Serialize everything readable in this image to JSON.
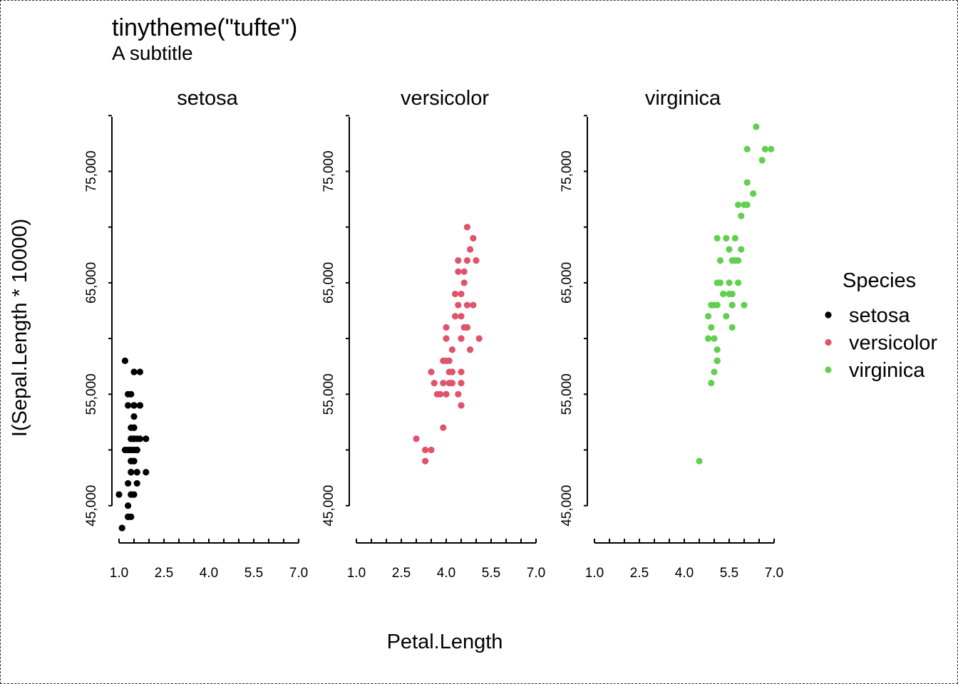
{
  "chart_data": {
    "type": "scatter",
    "title": "tinytheme(\"tufte\")",
    "subtitle": "A subtitle",
    "xlabel": "Petal.Length",
    "ylabel": "I(Sepal.Length * 10000)",
    "xlim": [
      1.0,
      7.0
    ],
    "ylim": [
      43000,
      80000
    ],
    "x_ticks": [
      1.0,
      2.5,
      4.0,
      5.5,
      7.0
    ],
    "x_tick_labels": [
      "1.0",
      "2.5",
      "4.0",
      "5.5",
      "7.0"
    ],
    "y_ticks": [
      45000,
      50000,
      55000,
      60000,
      65000,
      70000,
      75000,
      80000
    ],
    "y_tick_labels": [
      "45,000",
      "55,000",
      "65,000",
      "75,000"
    ],
    "y_labeled_ticks": [
      45000,
      55000,
      65000,
      75000
    ],
    "legend": {
      "title": "Species",
      "placement": "right",
      "entries": [
        {
          "label": "setosa",
          "color": "#000000"
        },
        {
          "label": "versicolor",
          "color": "#DF536B"
        },
        {
          "label": "virginica",
          "color": "#61D04F"
        }
      ]
    },
    "panels": [
      {
        "name": "setosa",
        "color": "#000000",
        "points": [
          [
            1.4,
            51000
          ],
          [
            1.4,
            49000
          ],
          [
            1.3,
            47000
          ],
          [
            1.5,
            46000
          ],
          [
            1.4,
            50000
          ],
          [
            1.7,
            54000
          ],
          [
            1.4,
            46000
          ],
          [
            1.5,
            50000
          ],
          [
            1.4,
            44000
          ],
          [
            1.5,
            49000
          ],
          [
            1.5,
            54000
          ],
          [
            1.6,
            48000
          ],
          [
            1.4,
            48000
          ],
          [
            1.1,
            43000
          ],
          [
            1.2,
            58000
          ],
          [
            1.5,
            57000
          ],
          [
            1.3,
            54000
          ],
          [
            1.4,
            51000
          ],
          [
            1.7,
            57000
          ],
          [
            1.5,
            51000
          ],
          [
            1.7,
            54000
          ],
          [
            1.5,
            51000
          ],
          [
            1.0,
            46000
          ],
          [
            1.7,
            51000
          ],
          [
            1.9,
            48000
          ],
          [
            1.6,
            50000
          ],
          [
            1.6,
            50000
          ],
          [
            1.5,
            52000
          ],
          [
            1.4,
            52000
          ],
          [
            1.6,
            47000
          ],
          [
            1.6,
            48000
          ],
          [
            1.5,
            54000
          ],
          [
            1.5,
            52000
          ],
          [
            1.4,
            55000
          ],
          [
            1.5,
            49000
          ],
          [
            1.2,
            50000
          ],
          [
            1.3,
            55000
          ],
          [
            1.4,
            49000
          ],
          [
            1.3,
            44000
          ],
          [
            1.5,
            51000
          ],
          [
            1.3,
            50000
          ],
          [
            1.3,
            45000
          ],
          [
            1.3,
            44000
          ],
          [
            1.6,
            50000
          ],
          [
            1.9,
            51000
          ],
          [
            1.4,
            48000
          ],
          [
            1.6,
            51000
          ],
          [
            1.4,
            46000
          ],
          [
            1.5,
            53000
          ],
          [
            1.4,
            50000
          ]
        ]
      },
      {
        "name": "versicolor",
        "color": "#DF536B",
        "points": [
          [
            4.7,
            70000
          ],
          [
            4.5,
            64000
          ],
          [
            4.9,
            69000
          ],
          [
            4.0,
            55000
          ],
          [
            4.6,
            65000
          ],
          [
            4.5,
            57000
          ],
          [
            4.7,
            63000
          ],
          [
            3.3,
            49000
          ],
          [
            4.6,
            66000
          ],
          [
            3.9,
            52000
          ],
          [
            3.5,
            50000
          ],
          [
            4.2,
            59000
          ],
          [
            4.0,
            60000
          ],
          [
            4.7,
            61000
          ],
          [
            3.6,
            56000
          ],
          [
            4.4,
            67000
          ],
          [
            4.5,
            56000
          ],
          [
            4.1,
            58000
          ],
          [
            4.5,
            62000
          ],
          [
            3.9,
            56000
          ],
          [
            4.8,
            59000
          ],
          [
            4.0,
            61000
          ],
          [
            4.9,
            63000
          ],
          [
            4.7,
            61000
          ],
          [
            4.3,
            64000
          ],
          [
            4.4,
            66000
          ],
          [
            4.8,
            68000
          ],
          [
            5.0,
            67000
          ],
          [
            4.5,
            60000
          ],
          [
            3.5,
            57000
          ],
          [
            3.8,
            55000
          ],
          [
            3.7,
            55000
          ],
          [
            3.9,
            58000
          ],
          [
            5.1,
            60000
          ],
          [
            4.5,
            54000
          ],
          [
            4.5,
            60000
          ],
          [
            4.7,
            67000
          ],
          [
            4.4,
            63000
          ],
          [
            4.1,
            56000
          ],
          [
            4.0,
            55000
          ],
          [
            4.4,
            55000
          ],
          [
            4.6,
            61000
          ],
          [
            4.0,
            58000
          ],
          [
            3.3,
            50000
          ],
          [
            4.2,
            56000
          ],
          [
            4.2,
            57000
          ],
          [
            4.2,
            57000
          ],
          [
            4.3,
            62000
          ],
          [
            3.0,
            51000
          ],
          [
            4.1,
            57000
          ]
        ]
      },
      {
        "name": "virginica",
        "color": "#61D04F",
        "points": [
          [
            6.0,
            63000
          ],
          [
            5.1,
            58000
          ],
          [
            5.9,
            71000
          ],
          [
            5.6,
            63000
          ],
          [
            5.8,
            65000
          ],
          [
            6.6,
            76000
          ],
          [
            4.5,
            49000
          ],
          [
            6.3,
            73000
          ],
          [
            5.8,
            67000
          ],
          [
            6.1,
            72000
          ],
          [
            5.1,
            65000
          ],
          [
            5.3,
            64000
          ],
          [
            5.5,
            68000
          ],
          [
            5.0,
            57000
          ],
          [
            5.1,
            58000
          ],
          [
            5.3,
            64000
          ],
          [
            5.5,
            65000
          ],
          [
            6.7,
            77000
          ],
          [
            6.9,
            77000
          ],
          [
            5.0,
            60000
          ],
          [
            5.7,
            69000
          ],
          [
            4.9,
            56000
          ],
          [
            6.7,
            77000
          ],
          [
            4.9,
            63000
          ],
          [
            5.7,
            67000
          ],
          [
            6.0,
            72000
          ],
          [
            4.8,
            62000
          ],
          [
            4.9,
            61000
          ],
          [
            5.6,
            64000
          ],
          [
            5.8,
            72000
          ],
          [
            6.1,
            74000
          ],
          [
            6.4,
            79000
          ],
          [
            5.6,
            64000
          ],
          [
            5.1,
            63000
          ],
          [
            5.6,
            61000
          ],
          [
            6.1,
            77000
          ],
          [
            5.6,
            63000
          ],
          [
            5.5,
            64000
          ],
          [
            4.8,
            60000
          ],
          [
            5.4,
            69000
          ],
          [
            5.6,
            67000
          ],
          [
            5.1,
            69000
          ],
          [
            5.1,
            58000
          ],
          [
            5.9,
            68000
          ],
          [
            5.7,
            67000
          ],
          [
            5.2,
            67000
          ],
          [
            5.0,
            63000
          ],
          [
            5.2,
            65000
          ],
          [
            5.4,
            62000
          ],
          [
            5.1,
            59000
          ]
        ]
      }
    ]
  }
}
